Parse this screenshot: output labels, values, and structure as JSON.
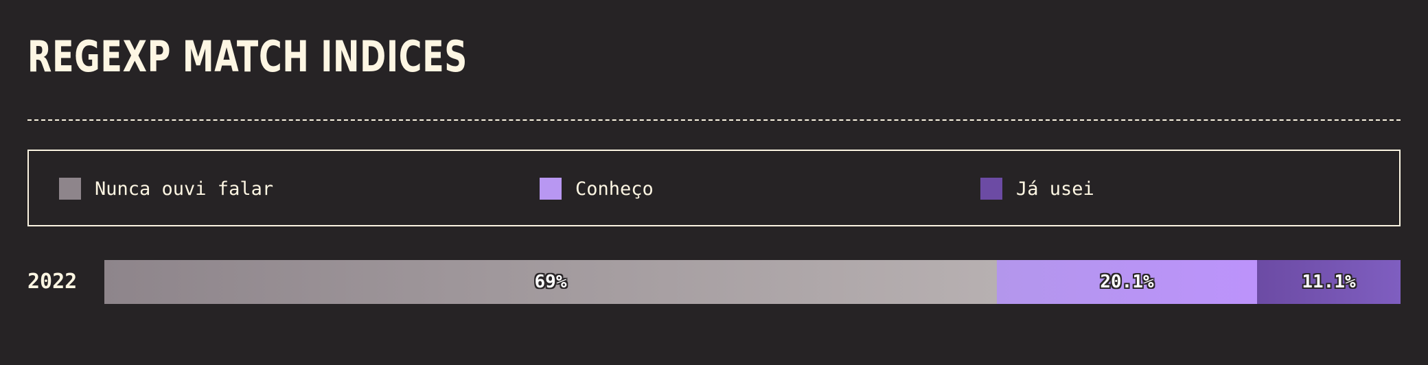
{
  "header": {
    "title": "REGEXP MATCH INDICES"
  },
  "legend": {
    "items": [
      {
        "label": "Nunca ouvi falar",
        "color": "#8e858b"
      },
      {
        "label": "Conheço",
        "color": "#b897f2"
      },
      {
        "label": "Já usei",
        "color": "#6c4ba4"
      }
    ]
  },
  "chart_data": {
    "type": "bar",
    "orientation": "horizontal",
    "stacked": true,
    "normalized": true,
    "categories": [
      "2022"
    ],
    "series": [
      {
        "name": "Nunca ouvi falar",
        "values": [
          69
        ],
        "label": "69%",
        "color_start": "#8e858b",
        "color_end": "#b7b0b1"
      },
      {
        "name": "Conheço",
        "values": [
          20.1
        ],
        "label": "20.1%",
        "color_start": "#b396ec",
        "color_end": "#bc93fb"
      },
      {
        "name": "Já usei",
        "values": [
          11.1
        ],
        "label": "11.1%",
        "color_start": "#6c4ba4",
        "color_end": "#7f5ec0"
      }
    ],
    "xlim": [
      0,
      100
    ],
    "grid": false,
    "legend_position": "top"
  }
}
